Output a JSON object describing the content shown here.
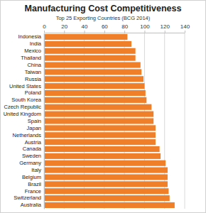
{
  "chart_data": {
    "type": "bar",
    "orientation": "horizontal",
    "title": "Manufacturing Cost Competitiveness",
    "subtitle": "Top 25 Exporting Countries (BCG 2014)",
    "categories": [
      "Indonesia",
      "India",
      "Mexico",
      "Thailand",
      "China",
      "Taiwan",
      "Russia",
      "United States",
      "Poland",
      "South Korea",
      "Czech Republic",
      "United Kingdom",
      "Spain",
      "Japan",
      "Netherlands",
      "Austria",
      "Canada",
      "Sweden",
      "Germany",
      "Italy",
      "Belgium",
      "Brazil",
      "France",
      "Switzerland",
      "Australia"
    ],
    "values": [
      83,
      87,
      91,
      91,
      96,
      97,
      99,
      100,
      101,
      102,
      107,
      109,
      109,
      111,
      111,
      111,
      115,
      116,
      121,
      123,
      123,
      123,
      124,
      125,
      130
    ],
    "color": "#f07f2a",
    "xlim": [
      0,
      140
    ],
    "xticks": [
      0,
      20,
      40,
      60,
      80,
      100,
      120,
      140
    ],
    "grid": true
  }
}
